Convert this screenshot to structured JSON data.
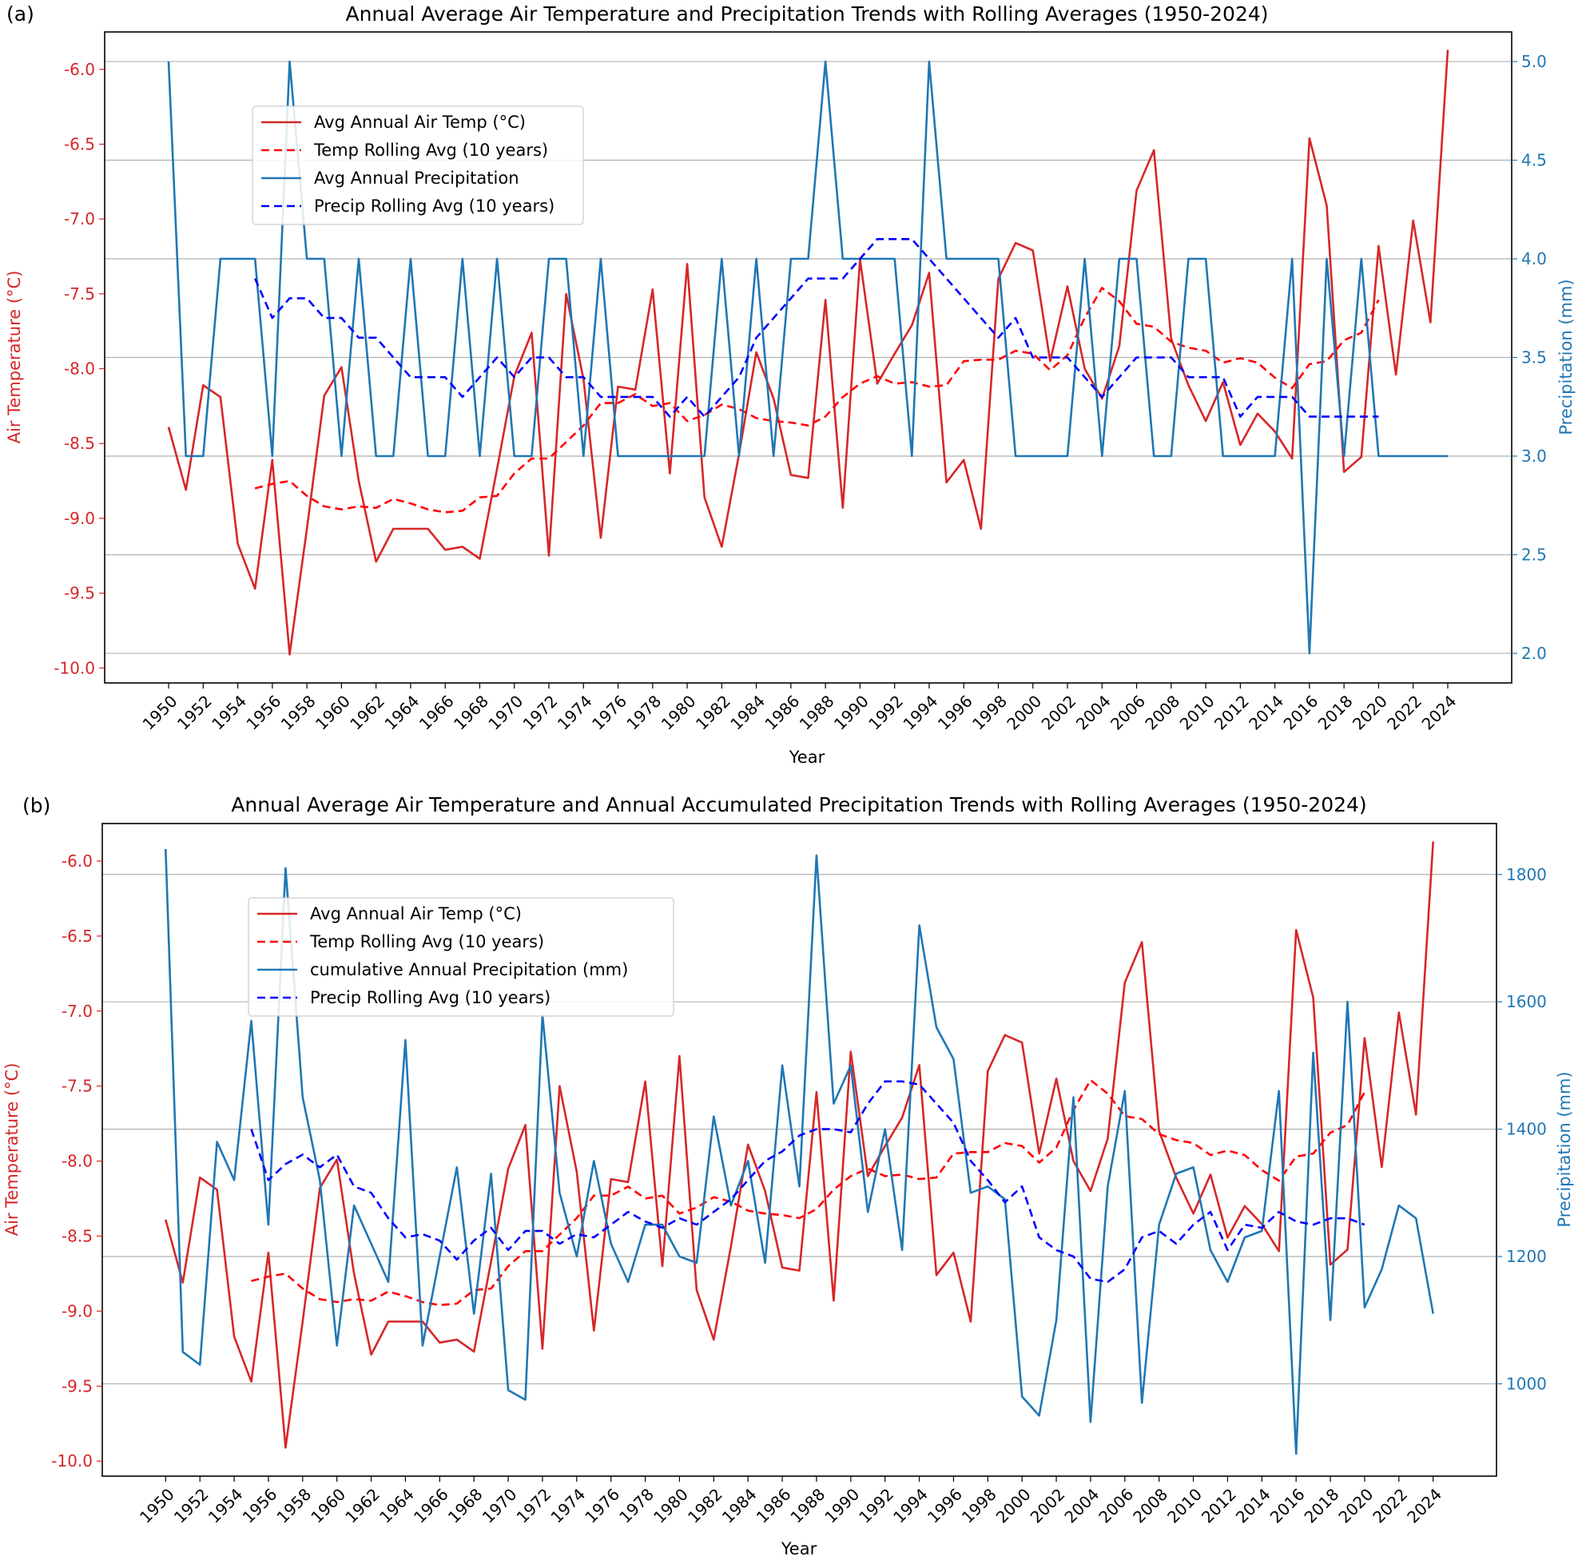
{
  "colors": {
    "temp": "#d62728",
    "temp_rolling": "#ff0000",
    "precip": "#1f77b4",
    "precip_rolling": "#0000ff",
    "grid": "#b0b0b0"
  },
  "chart_data": [
    {
      "panel_label": "(a)",
      "type": "line",
      "title": "Annual Average Air Temperature and Precipitation Trends with Rolling Averages (1950-2024)",
      "xlabel": "Year",
      "ylabel": "Air Temperature (°C)",
      "y2label": "Precipitation (mm)",
      "xlim": [
        1946.3,
        2027.7
      ],
      "ylim": [
        -10.1,
        -5.75
      ],
      "y2lim": [
        1.85,
        5.15
      ],
      "x_ticks": [
        1950,
        1952,
        1954,
        1956,
        1958,
        1960,
        1962,
        1964,
        1966,
        1968,
        1970,
        1972,
        1974,
        1976,
        1978,
        1980,
        1982,
        1984,
        1986,
        1988,
        1990,
        1992,
        1994,
        1996,
        1998,
        2000,
        2002,
        2004,
        2006,
        2008,
        2010,
        2012,
        2014,
        2016,
        2018,
        2020,
        2022,
        2024
      ],
      "y_ticks": [
        -10.0,
        -9.5,
        -9.0,
        -8.5,
        -8.0,
        -7.5,
        -7.0,
        -6.5,
        -6.0
      ],
      "y_tick_labels": [
        "-10.0",
        "-9.5",
        "-9.0",
        "-8.5",
        "-8.0",
        "-7.5",
        "-7.0",
        "-6.5",
        "-6.0"
      ],
      "y2_ticks": [
        2.0,
        2.5,
        3.0,
        3.5,
        4.0,
        4.5,
        5.0
      ],
      "y2_tick_labels": [
        "2.0",
        "2.5",
        "3.0",
        "3.5",
        "4.0",
        "4.5",
        "5.0"
      ],
      "grid": "right-axis horizontal",
      "legend_position": "upper-left",
      "series": [
        {
          "name": "Avg Annual Air Temp (°C)",
          "axis": "left",
          "color_key": "temp",
          "dash": false,
          "x_start": 1950,
          "values": [
            -8.39,
            -8.81,
            -8.11,
            -8.19,
            -9.17,
            -9.47,
            -8.61,
            -9.91,
            -9.07,
            -8.18,
            -7.99,
            -8.75,
            -9.29,
            -9.07,
            -9.07,
            -9.07,
            -9.21,
            -9.19,
            -9.27,
            -8.67,
            -8.05,
            -7.76,
            -9.25,
            -7.5,
            -8.07,
            -9.13,
            -8.12,
            -8.14,
            -7.47,
            -8.7,
            -7.3,
            -8.86,
            -9.19,
            -8.57,
            -7.89,
            -8.2,
            -8.71,
            -8.73,
            -7.54,
            -8.93,
            -7.27,
            -8.1,
            -7.9,
            -7.71,
            -7.36,
            -8.76,
            -8.61,
            -9.07,
            -7.4,
            -7.16,
            -7.21,
            -7.95,
            -7.45,
            -8.0,
            -8.2,
            -7.85,
            -6.81,
            -6.54,
            -7.8,
            -8.11,
            -8.35,
            -8.09,
            -8.51,
            -8.3,
            -8.42,
            -8.6,
            -6.46,
            -6.91,
            -8.69,
            -8.59,
            -7.18,
            -8.04,
            -7.01,
            -7.69,
            -5.87
          ]
        },
        {
          "name": "Temp Rolling Avg (10 years)",
          "axis": "left",
          "color_key": "temp_rolling",
          "dash": true,
          "x_start": 1955,
          "values": [
            -8.8,
            -8.77,
            -8.75,
            -8.85,
            -8.92,
            -8.94,
            -8.92,
            -8.93,
            -8.87,
            -8.9,
            -8.94,
            -8.96,
            -8.95,
            -8.86,
            -8.85,
            -8.7,
            -8.6,
            -8.6,
            -8.49,
            -8.38,
            -8.23,
            -8.23,
            -8.17,
            -8.25,
            -8.23,
            -8.35,
            -8.31,
            -8.24,
            -8.27,
            -8.33,
            -8.35,
            -8.36,
            -8.38,
            -8.32,
            -8.19,
            -8.1,
            -8.05,
            -8.1,
            -8.09,
            -8.12,
            -8.11,
            -7.95,
            -7.94,
            -7.94,
            -7.88,
            -7.9,
            -8.01,
            -7.91,
            -7.66,
            -7.46,
            -7.55,
            -7.7,
            -7.72,
            -7.82,
            -7.86,
            -7.88,
            -7.96,
            -7.93,
            -7.96,
            -8.06,
            -8.13,
            -7.97,
            -7.95,
            -7.81,
            -7.76,
            -7.54
          ]
        },
        {
          "name": "Avg Annual Precipitation",
          "axis": "right",
          "color_key": "precip",
          "dash": false,
          "x_start": 1950,
          "values": [
            5,
            3,
            3,
            4,
            4,
            4,
            3,
            5,
            4,
            4,
            3,
            4,
            3,
            3,
            4,
            3,
            3,
            4,
            3,
            4,
            3,
            3,
            4,
            4,
            3,
            4,
            3,
            3,
            3,
            3,
            3,
            3,
            4,
            3,
            4,
            3,
            4,
            4,
            5,
            4,
            4,
            4,
            4,
            3,
            5,
            4,
            4,
            4,
            4,
            3,
            3,
            3,
            3,
            4,
            3,
            4,
            4,
            3,
            3,
            4,
            4,
            3,
            3,
            3,
            3,
            4,
            2,
            4,
            3,
            4,
            3,
            3,
            3,
            3,
            3
          ]
        },
        {
          "name": "Precip Rolling Avg (10 years)",
          "axis": "right",
          "color_key": "precip_rolling",
          "dash": true,
          "x_start": 1955,
          "values": [
            3.9,
            3.7,
            3.8,
            3.8,
            3.7,
            3.7,
            3.6,
            3.6,
            3.5,
            3.4,
            3.4,
            3.4,
            3.3,
            3.4,
            3.5,
            3.4,
            3.5,
            3.5,
            3.4,
            3.4,
            3.3,
            3.3,
            3.3,
            3.3,
            3.2,
            3.3,
            3.2,
            3.3,
            3.4,
            3.6,
            3.7,
            3.8,
            3.9,
            3.9,
            3.9,
            4.0,
            4.1,
            4.1,
            4.1,
            4.0,
            3.9,
            3.8,
            3.7,
            3.6,
            3.7,
            3.5,
            3.5,
            3.5,
            3.4,
            3.3,
            3.4,
            3.5,
            3.5,
            3.5,
            3.4,
            3.4,
            3.4,
            3.2,
            3.3,
            3.3,
            3.3,
            3.2,
            3.2,
            3.2,
            3.2,
            3.2
          ]
        }
      ],
      "legend": [
        "Avg Annual Air Temp (°C)",
        "Temp Rolling Avg (10 years)",
        "Avg Annual Precipitation",
        "Precip Rolling Avg (10 years)"
      ]
    },
    {
      "panel_label": "(b)",
      "type": "line",
      "title": "Annual Average Air Temperature and Annual Accumulated Precipitation Trends with Rolling Averages (1950-2024)",
      "xlabel": "Year",
      "ylabel": "Air Temperature (°C)",
      "y2label": "Precipitation (mm)",
      "xlim": [
        1946.3,
        2027.7
      ],
      "ylim": [
        -10.1,
        -5.75
      ],
      "y2lim": [
        855,
        1880
      ],
      "x_ticks": [
        1950,
        1952,
        1954,
        1956,
        1958,
        1960,
        1962,
        1964,
        1966,
        1968,
        1970,
        1972,
        1974,
        1976,
        1978,
        1980,
        1982,
        1984,
        1986,
        1988,
        1990,
        1992,
        1994,
        1996,
        1998,
        2000,
        2002,
        2004,
        2006,
        2008,
        2010,
        2012,
        2014,
        2016,
        2018,
        2020,
        2022,
        2024
      ],
      "y_ticks": [
        -10.0,
        -9.5,
        -9.0,
        -8.5,
        -8.0,
        -7.5,
        -7.0,
        -6.5,
        -6.0
      ],
      "y_tick_labels": [
        "-10.0",
        "-9.5",
        "-9.0",
        "-8.5",
        "-8.0",
        "-7.5",
        "-7.0",
        "-6.5",
        "-6.0"
      ],
      "y2_ticks": [
        1000,
        1200,
        1400,
        1600,
        1800
      ],
      "y2_tick_labels": [
        "1000",
        "1200",
        "1400",
        "1600",
        "1800"
      ],
      "grid": "right-axis horizontal",
      "legend_position": "upper-left",
      "series": [
        {
          "name": "Avg Annual Air Temp (°C)",
          "axis": "left",
          "color_key": "temp",
          "dash": false,
          "x_start": 1950,
          "values": [
            -8.39,
            -8.81,
            -8.11,
            -8.19,
            -9.17,
            -9.47,
            -8.61,
            -9.91,
            -9.07,
            -8.18,
            -7.99,
            -8.75,
            -9.29,
            -9.07,
            -9.07,
            -9.07,
            -9.21,
            -9.19,
            -9.27,
            -8.67,
            -8.05,
            -7.76,
            -9.25,
            -7.5,
            -8.07,
            -9.13,
            -8.12,
            -8.14,
            -7.47,
            -8.7,
            -7.3,
            -8.86,
            -9.19,
            -8.57,
            -7.89,
            -8.2,
            -8.71,
            -8.73,
            -7.54,
            -8.93,
            -7.27,
            -8.1,
            -7.9,
            -7.71,
            -7.36,
            -8.76,
            -8.61,
            -9.07,
            -7.4,
            -7.16,
            -7.21,
            -7.95,
            -7.45,
            -8.0,
            -8.2,
            -7.85,
            -6.81,
            -6.54,
            -7.8,
            -8.11,
            -8.35,
            -8.09,
            -8.51,
            -8.3,
            -8.42,
            -8.6,
            -6.46,
            -6.91,
            -8.69,
            -8.59,
            -7.18,
            -8.04,
            -7.01,
            -7.69,
            -5.87
          ]
        },
        {
          "name": "Temp Rolling Avg (10 years)",
          "axis": "left",
          "color_key": "temp_rolling",
          "dash": true,
          "x_start": 1955,
          "values": [
            -8.8,
            -8.77,
            -8.75,
            -8.85,
            -8.92,
            -8.94,
            -8.92,
            -8.93,
            -8.87,
            -8.9,
            -8.94,
            -8.96,
            -8.95,
            -8.86,
            -8.85,
            -8.7,
            -8.6,
            -8.6,
            -8.49,
            -8.38,
            -8.23,
            -8.23,
            -8.17,
            -8.25,
            -8.23,
            -8.35,
            -8.31,
            -8.24,
            -8.27,
            -8.33,
            -8.35,
            -8.36,
            -8.38,
            -8.32,
            -8.19,
            -8.1,
            -8.05,
            -8.1,
            -8.09,
            -8.12,
            -8.11,
            -7.95,
            -7.94,
            -7.94,
            -7.88,
            -7.9,
            -8.01,
            -7.91,
            -7.66,
            -7.46,
            -7.55,
            -7.7,
            -7.72,
            -7.82,
            -7.86,
            -7.88,
            -7.96,
            -7.93,
            -7.96,
            -8.06,
            -8.13,
            -7.97,
            -7.95,
            -7.81,
            -7.76,
            -7.54
          ]
        },
        {
          "name": "cumulative Annual Precipitation (mm)",
          "axis": "right",
          "color_key": "precip",
          "dash": false,
          "x_start": 1950,
          "values": [
            1840,
            1050,
            1030,
            1380,
            1320,
            1570,
            1250,
            1810,
            1450,
            1320,
            1060,
            1280,
            1220,
            1160,
            1540,
            1060,
            1200,
            1340,
            1110,
            1330,
            990,
            975,
            1580,
            1300,
            1200,
            1350,
            1220,
            1160,
            1250,
            1250,
            1200,
            1190,
            1420,
            1280,
            1350,
            1190,
            1500,
            1310,
            1830,
            1440,
            1500,
            1270,
            1400,
            1210,
            1720,
            1560,
            1510,
            1300,
            1310,
            1290,
            980,
            950,
            1100,
            1450,
            940,
            1310,
            1460,
            970,
            1250,
            1330,
            1340,
            1210,
            1160,
            1230,
            1240,
            1460,
            890,
            1520,
            1100,
            1600,
            1120,
            1180,
            1280,
            1260,
            1110
          ]
        },
        {
          "name": "Precip Rolling Avg (10 years)",
          "axis": "right",
          "color_key": "precip_rolling",
          "dash": true,
          "x_start": 1955,
          "values": [
            1400,
            1320,
            1345,
            1360,
            1340,
            1360,
            1310,
            1300,
            1260,
            1230,
            1235,
            1225,
            1195,
            1225,
            1245,
            1210,
            1240,
            1240,
            1220,
            1235,
            1230,
            1250,
            1270,
            1255,
            1245,
            1260,
            1250,
            1270,
            1290,
            1320,
            1350,
            1365,
            1390,
            1400,
            1400,
            1395,
            1440,
            1475,
            1475,
            1470,
            1440,
            1410,
            1350,
            1320,
            1285,
            1310,
            1230,
            1210,
            1200,
            1165,
            1160,
            1180,
            1230,
            1240,
            1220,
            1250,
            1270,
            1210,
            1250,
            1245,
            1270,
            1255,
            1250,
            1260,
            1260,
            1250
          ]
        }
      ],
      "legend": [
        "Avg Annual Air Temp (°C)",
        "Temp Rolling Avg (10 years)",
        "cumulative Annual Precipitation (mm)",
        "Precip Rolling Avg (10 years)"
      ]
    }
  ]
}
